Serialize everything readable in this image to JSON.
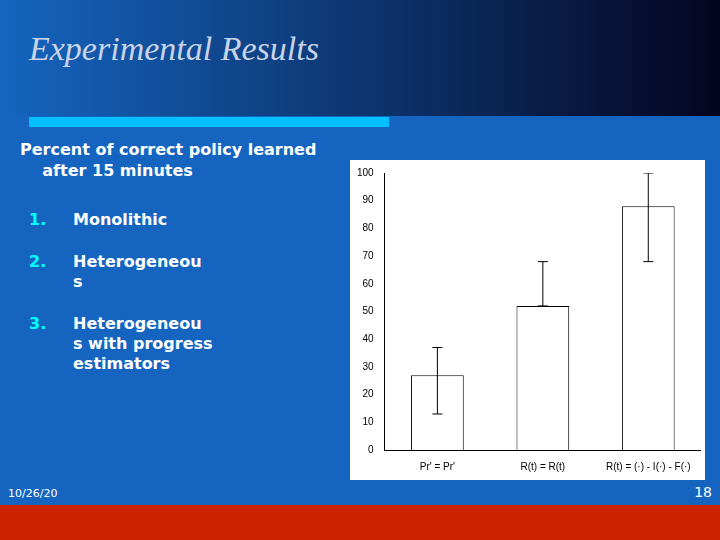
{
  "chart_data": {
    "type": "bar",
    "title": "Experimental Results",
    "subtitle": "Percent of correct policy learned\n    after 15 minutes",
    "annotations": [
      "1.",
      "Monolithic",
      "2.",
      "Heterogeneou\ns",
      "3.",
      "Heterogeneou\ns with progress\nestimators",
      "10/26/20",
      "18"
    ],
    "categories": [
      "Pr' = Pr'",
      "R(t) = R(t)",
      "R(t) = (·) - I(·) - F(·)"
    ],
    "values": [
      27,
      52,
      88
    ],
    "yerr_lower": [
      14,
      0,
      20
    ],
    "yerr_upper": [
      10,
      16,
      12
    ],
    "color": "white",
    "ylim": [
      0,
      100
    ],
    "yticks": [
      0,
      10,
      20,
      30,
      40,
      50,
      60,
      70,
      80,
      90,
      100
    ],
    "grid": false
  }
}
